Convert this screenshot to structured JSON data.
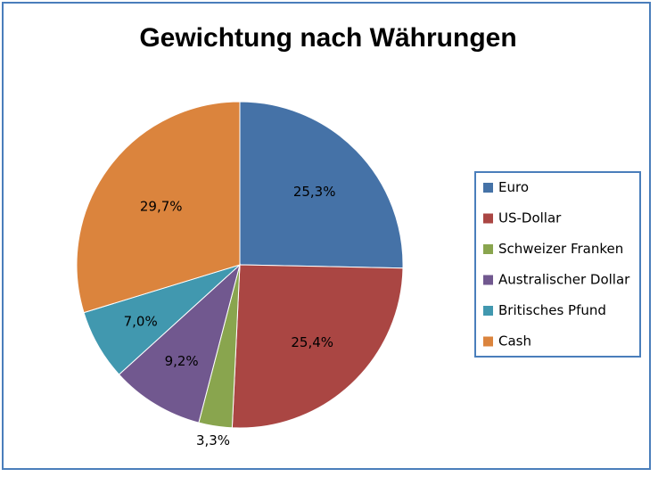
{
  "chart_data": {
    "type": "pie",
    "title": "Gewichtung nach Währungen",
    "categories": [
      "Euro",
      "US-Dollar",
      "Schweizer Franken",
      "Australischer Dollar",
      "Britisches Pfund",
      "Cash"
    ],
    "values": [
      25.3,
      25.4,
      3.3,
      9.2,
      7.0,
      29.7
    ],
    "data_labels": [
      "25,3%",
      "25,4%",
      "3,3%",
      "9,2%",
      "7,0%",
      "29,7%"
    ],
    "colors": [
      "#4572a7",
      "#aa4643",
      "#89a54e",
      "#71588f",
      "#4198af",
      "#db843d"
    ],
    "legend_position": "right",
    "start_angle_deg": 0,
    "direction": "clockwise"
  }
}
